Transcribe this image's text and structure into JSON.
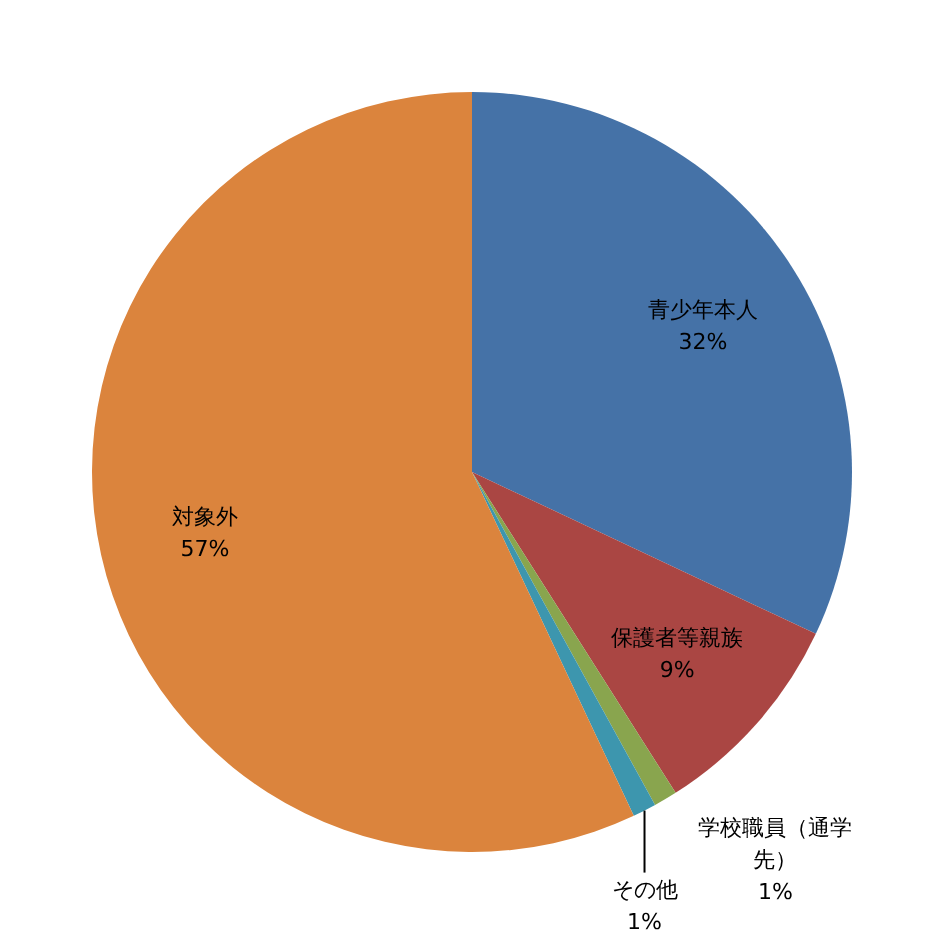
{
  "chart_data": {
    "type": "pie",
    "categories": [
      "青少年本人",
      "保護者等親族",
      "学校職員（通学先）",
      "その他",
      "対象外"
    ],
    "values": [
      32,
      9,
      1,
      1,
      57
    ],
    "colors": [
      "#4572a7",
      "#aa4643",
      "#89a54e",
      "#3d96ae",
      "#db843d"
    ],
    "value_labels": [
      "32%",
      "9%",
      "1%",
      "1%",
      "57%"
    ]
  }
}
